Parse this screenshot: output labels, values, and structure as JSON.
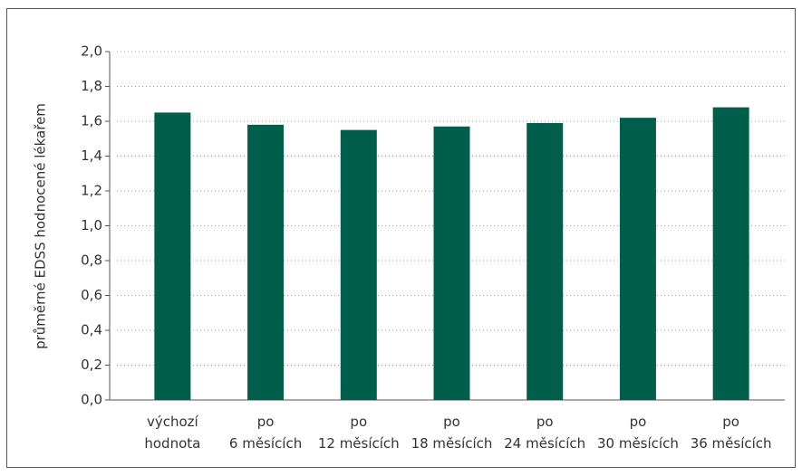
{
  "chart_data": {
    "type": "bar",
    "ylabel": "průměrné EDSS hodnocené lékařem",
    "categories": [
      "výchozí\nhodnota",
      "po\n6 měsících",
      "po\n12 měsících",
      "po\n18 měsících",
      "po\n24 měsících",
      "po\n30 měsících",
      "po\n36 měsících"
    ],
    "values": [
      1.65,
      1.58,
      1.55,
      1.57,
      1.59,
      1.62,
      1.68
    ],
    "color": "#005e4b",
    "ylim": [
      0,
      2
    ],
    "yticks": [
      {
        "value": 0,
        "label": "0,0"
      },
      {
        "value": 0.2,
        "label": "0,2"
      },
      {
        "value": 0.4,
        "label": "0,4"
      },
      {
        "value": 0.6,
        "label": "0,6"
      },
      {
        "value": 0.8,
        "label": "0,8"
      },
      {
        "value": 1,
        "label": "1,0"
      },
      {
        "value": 1.2,
        "label": "1,2"
      },
      {
        "value": 1.4,
        "label": "1,4"
      },
      {
        "value": 1.6,
        "label": "1,6"
      },
      {
        "value": 1.8,
        "label": "1,8"
      },
      {
        "value": 2,
        "label": "2,0"
      }
    ],
    "grid": true
  }
}
